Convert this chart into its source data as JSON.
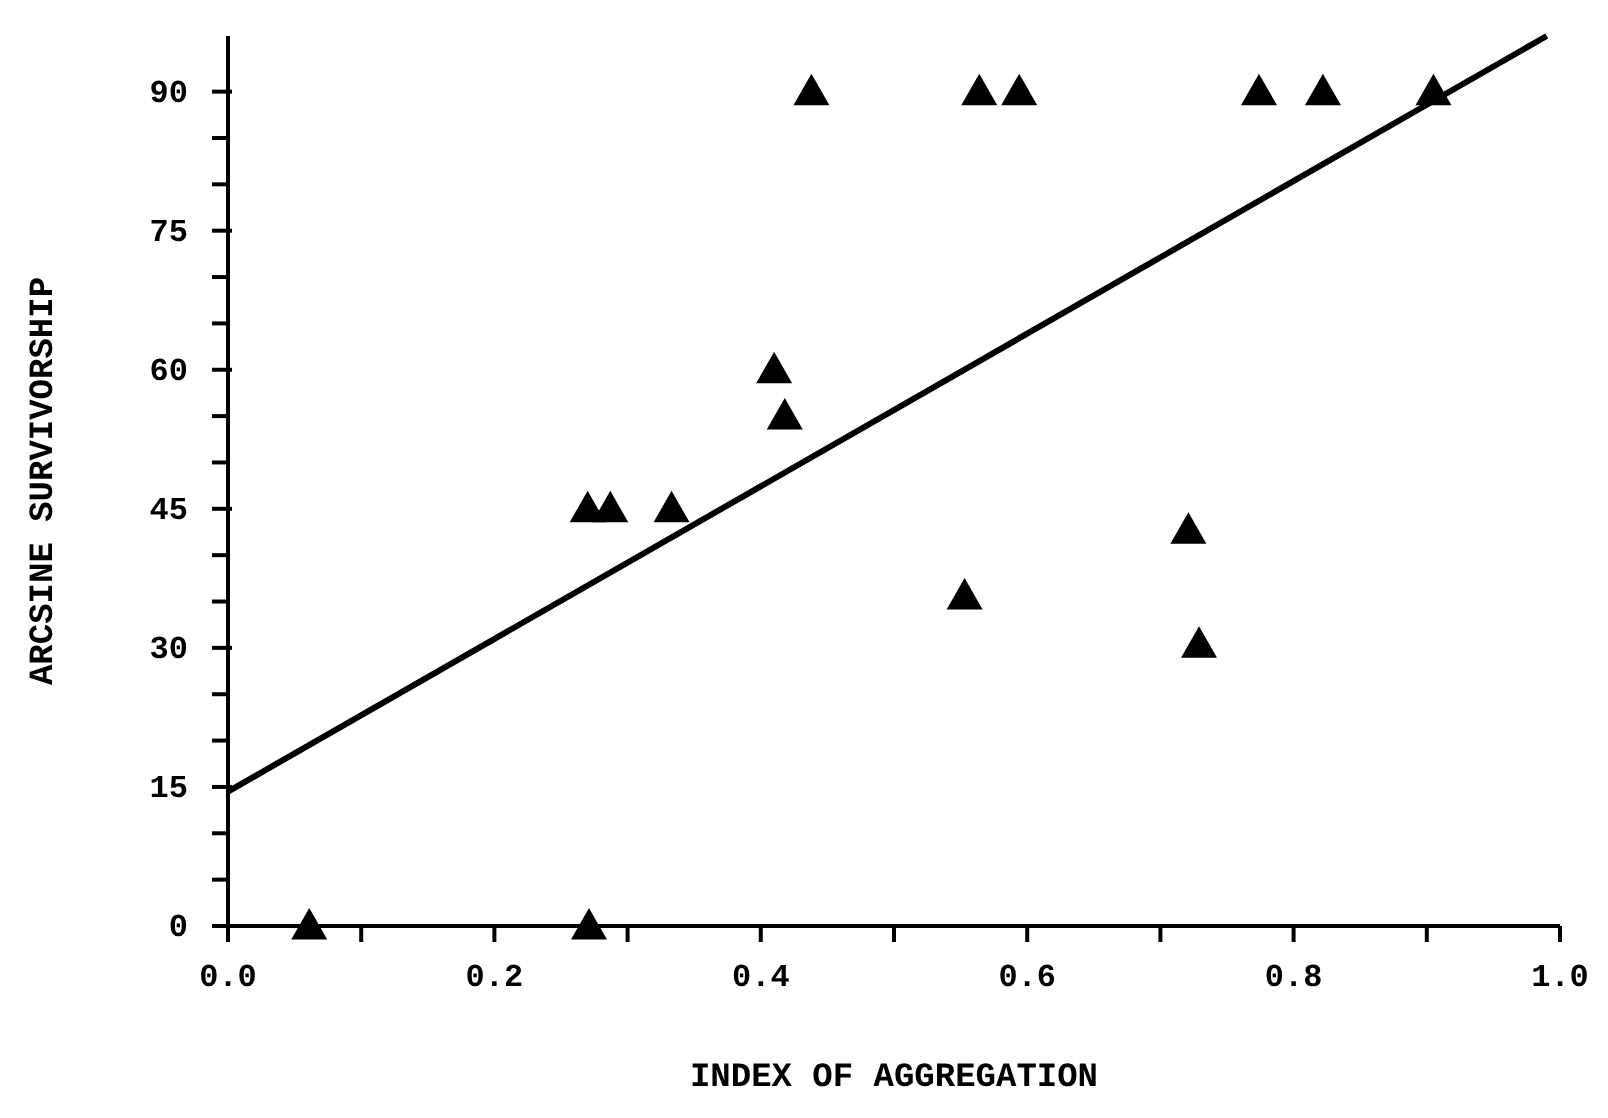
{
  "chart_data": {
    "type": "scatter",
    "xlabel": "INDEX OF AGGREGATION",
    "ylabel": "ARCSINE SURVIVORSHIP",
    "grid": false,
    "legend": false,
    "xlim": [
      0,
      1
    ],
    "ylim": [
      0,
      96
    ],
    "xticks": [
      {
        "value": 0,
        "label": "0.0"
      },
      {
        "value": 0.1,
        "label": null
      },
      {
        "value": 0.2,
        "label": "0.2"
      },
      {
        "value": 0.3,
        "label": null
      },
      {
        "value": 0.4,
        "label": "0.4"
      },
      {
        "value": 0.5,
        "label": null
      },
      {
        "value": 0.6,
        "label": "0.6"
      },
      {
        "value": 0.7,
        "label": null
      },
      {
        "value": 0.8,
        "label": "0.8"
      },
      {
        "value": 0.9,
        "label": null
      },
      {
        "value": 1,
        "label": "1.0"
      }
    ],
    "yticks": [
      0,
      {
        "value": 5,
        "label": null
      },
      {
        "value": 10,
        "label": null
      },
      15,
      {
        "value": 20,
        "label": null
      },
      {
        "value": 25,
        "label": null
      },
      30,
      {
        "value": 35,
        "label": null
      },
      {
        "value": 40,
        "label": null
      },
      45,
      {
        "value": 50,
        "label": null
      },
      {
        "value": 55,
        "label": null
      },
      60,
      {
        "value": 65,
        "label": null
      },
      {
        "value": 70,
        "label": null
      },
      75,
      {
        "value": 80,
        "label": null
      },
      {
        "value": 85,
        "label": null
      },
      90
    ],
    "series": [
      {
        "marker": "triangle",
        "color": "#000000",
        "x": [
          0.061,
          0.271,
          0.27,
          0.287,
          0.333,
          0.41,
          0.418,
          0.438,
          0.553,
          0.564,
          0.594,
          0.721,
          0.729,
          0.774,
          0.822,
          0.905
        ],
        "values": [
          0,
          0,
          45,
          45,
          45,
          60,
          55,
          90,
          35.6,
          90,
          90,
          42.7,
          30.4,
          90,
          90,
          90
        ]
      },
      {
        "type": "line",
        "marker": "none",
        "color": "#000000",
        "x": [
          0,
          0.99
        ],
        "values": [
          14.5,
          96
        ]
      }
    ]
  }
}
